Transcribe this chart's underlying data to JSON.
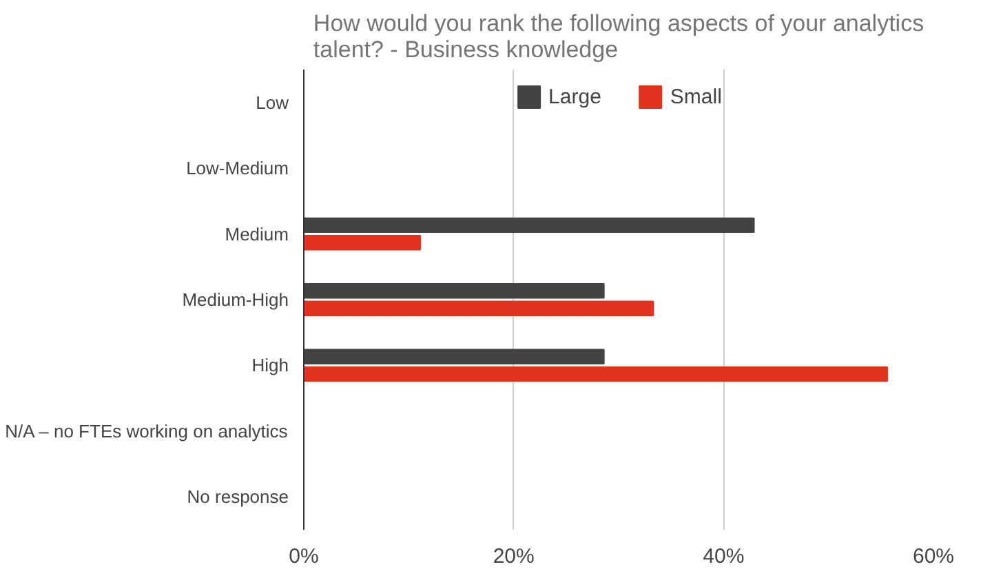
{
  "chart_data": {
    "type": "bar",
    "orientation": "horizontal",
    "title": "How would you rank the following aspects of your analytics talent? - Business knowledge",
    "categories": [
      "Low",
      "Low-Medium",
      "Medium",
      "Medium-High",
      "High",
      "N/A – no FTEs working on analytics",
      "No response"
    ],
    "series": [
      {
        "name": "Large",
        "color": "#434343",
        "values": [
          null,
          null,
          42.9,
          28.6,
          28.6,
          null,
          null
        ]
      },
      {
        "name": "Small",
        "color": "#e0321f",
        "values": [
          null,
          null,
          11.1,
          33.3,
          55.6,
          null,
          null
        ]
      }
    ],
    "xlim": [
      0,
      60
    ],
    "xticks": [
      {
        "value": 0,
        "label": "0%"
      },
      {
        "value": 20,
        "label": "20%"
      },
      {
        "value": 40,
        "label": "40%"
      },
      {
        "value": 60,
        "label": "60%"
      }
    ],
    "grid": "x",
    "legend": "top"
  }
}
